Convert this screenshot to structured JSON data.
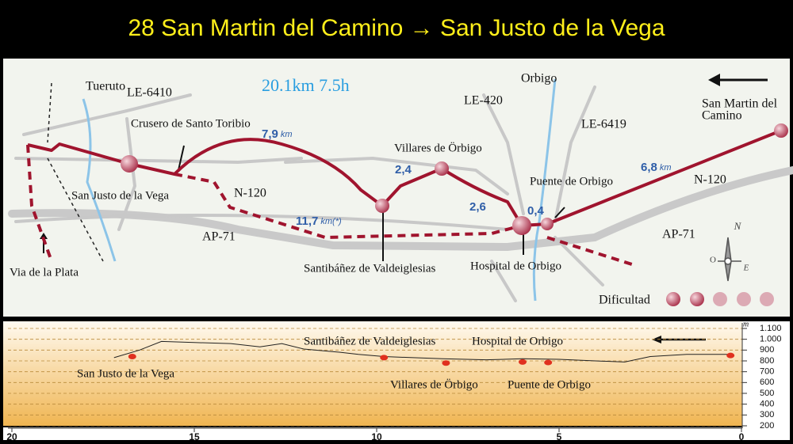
{
  "header": {
    "title": "28 San Martin del Camino → San Justo de la Vega"
  },
  "map": {
    "summary": "20.1km 7.5h",
    "labels": [
      "Tueruto",
      "LE-6410",
      "Orbigo",
      "LE-420",
      "LE-6419",
      "San Martin del",
      "Camino",
      "Crusero de Santo Toribio",
      "Villares de Örbigo",
      "Puente de Orbigo",
      "N-120",
      "N-120",
      "San Justo de la Vega",
      "AP-71",
      "AP-71",
      "Via de la Plata",
      "Santibáñez de Valdeiglesias",
      "Hospital de Orbigo"
    ],
    "distances": [
      {
        "value": "7,9",
        "unit": "km"
      },
      {
        "value": "2,4"
      },
      {
        "value": "2,6"
      },
      {
        "value": "0,4"
      },
      {
        "value": "6,8",
        "unit": "km"
      },
      {
        "value": "11,7",
        "unit": "km(*)"
      }
    ],
    "legend": "Dificultad",
    "compass": {
      "north": "N",
      "west": "O",
      "east": "E"
    }
  },
  "profile": {
    "type": "line",
    "places": [
      "San Justo de la Vega",
      "Santibáñez de Valdeiglesias",
      "Hospital de Orbigo",
      "Villares de Örbigo",
      "Puente de Orbigo"
    ],
    "x": [
      17.2,
      16.5,
      15.9,
      15,
      14,
      13.2,
      12.6,
      12,
      11,
      10.5,
      9.8,
      9,
      8.2,
      7,
      6,
      5,
      4,
      3.2,
      2.5,
      1.5,
      0.3
    ],
    "values": [
      830,
      900,
      980,
      970,
      960,
      930,
      960,
      910,
      880,
      860,
      840,
      830,
      820,
      810,
      820,
      815,
      800,
      790,
      840,
      860,
      860
    ],
    "stops": {
      "x": [
        16.7,
        9.8,
        8.1,
        6.0,
        5.3,
        0.3
      ],
      "values": [
        840,
        830,
        780,
        790,
        785,
        850
      ]
    },
    "xlim": [
      20,
      0
    ],
    "ylim": [
      200,
      1100
    ],
    "xticks": [
      20,
      15,
      10,
      5,
      0
    ],
    "yticks": [
      {
        "value": 1100,
        "label": "1.100"
      },
      {
        "value": 1000,
        "label": "1.000"
      },
      900,
      800,
      700,
      600,
      500,
      400,
      300,
      200
    ],
    "y_unit": "m",
    "grid": true
  }
}
